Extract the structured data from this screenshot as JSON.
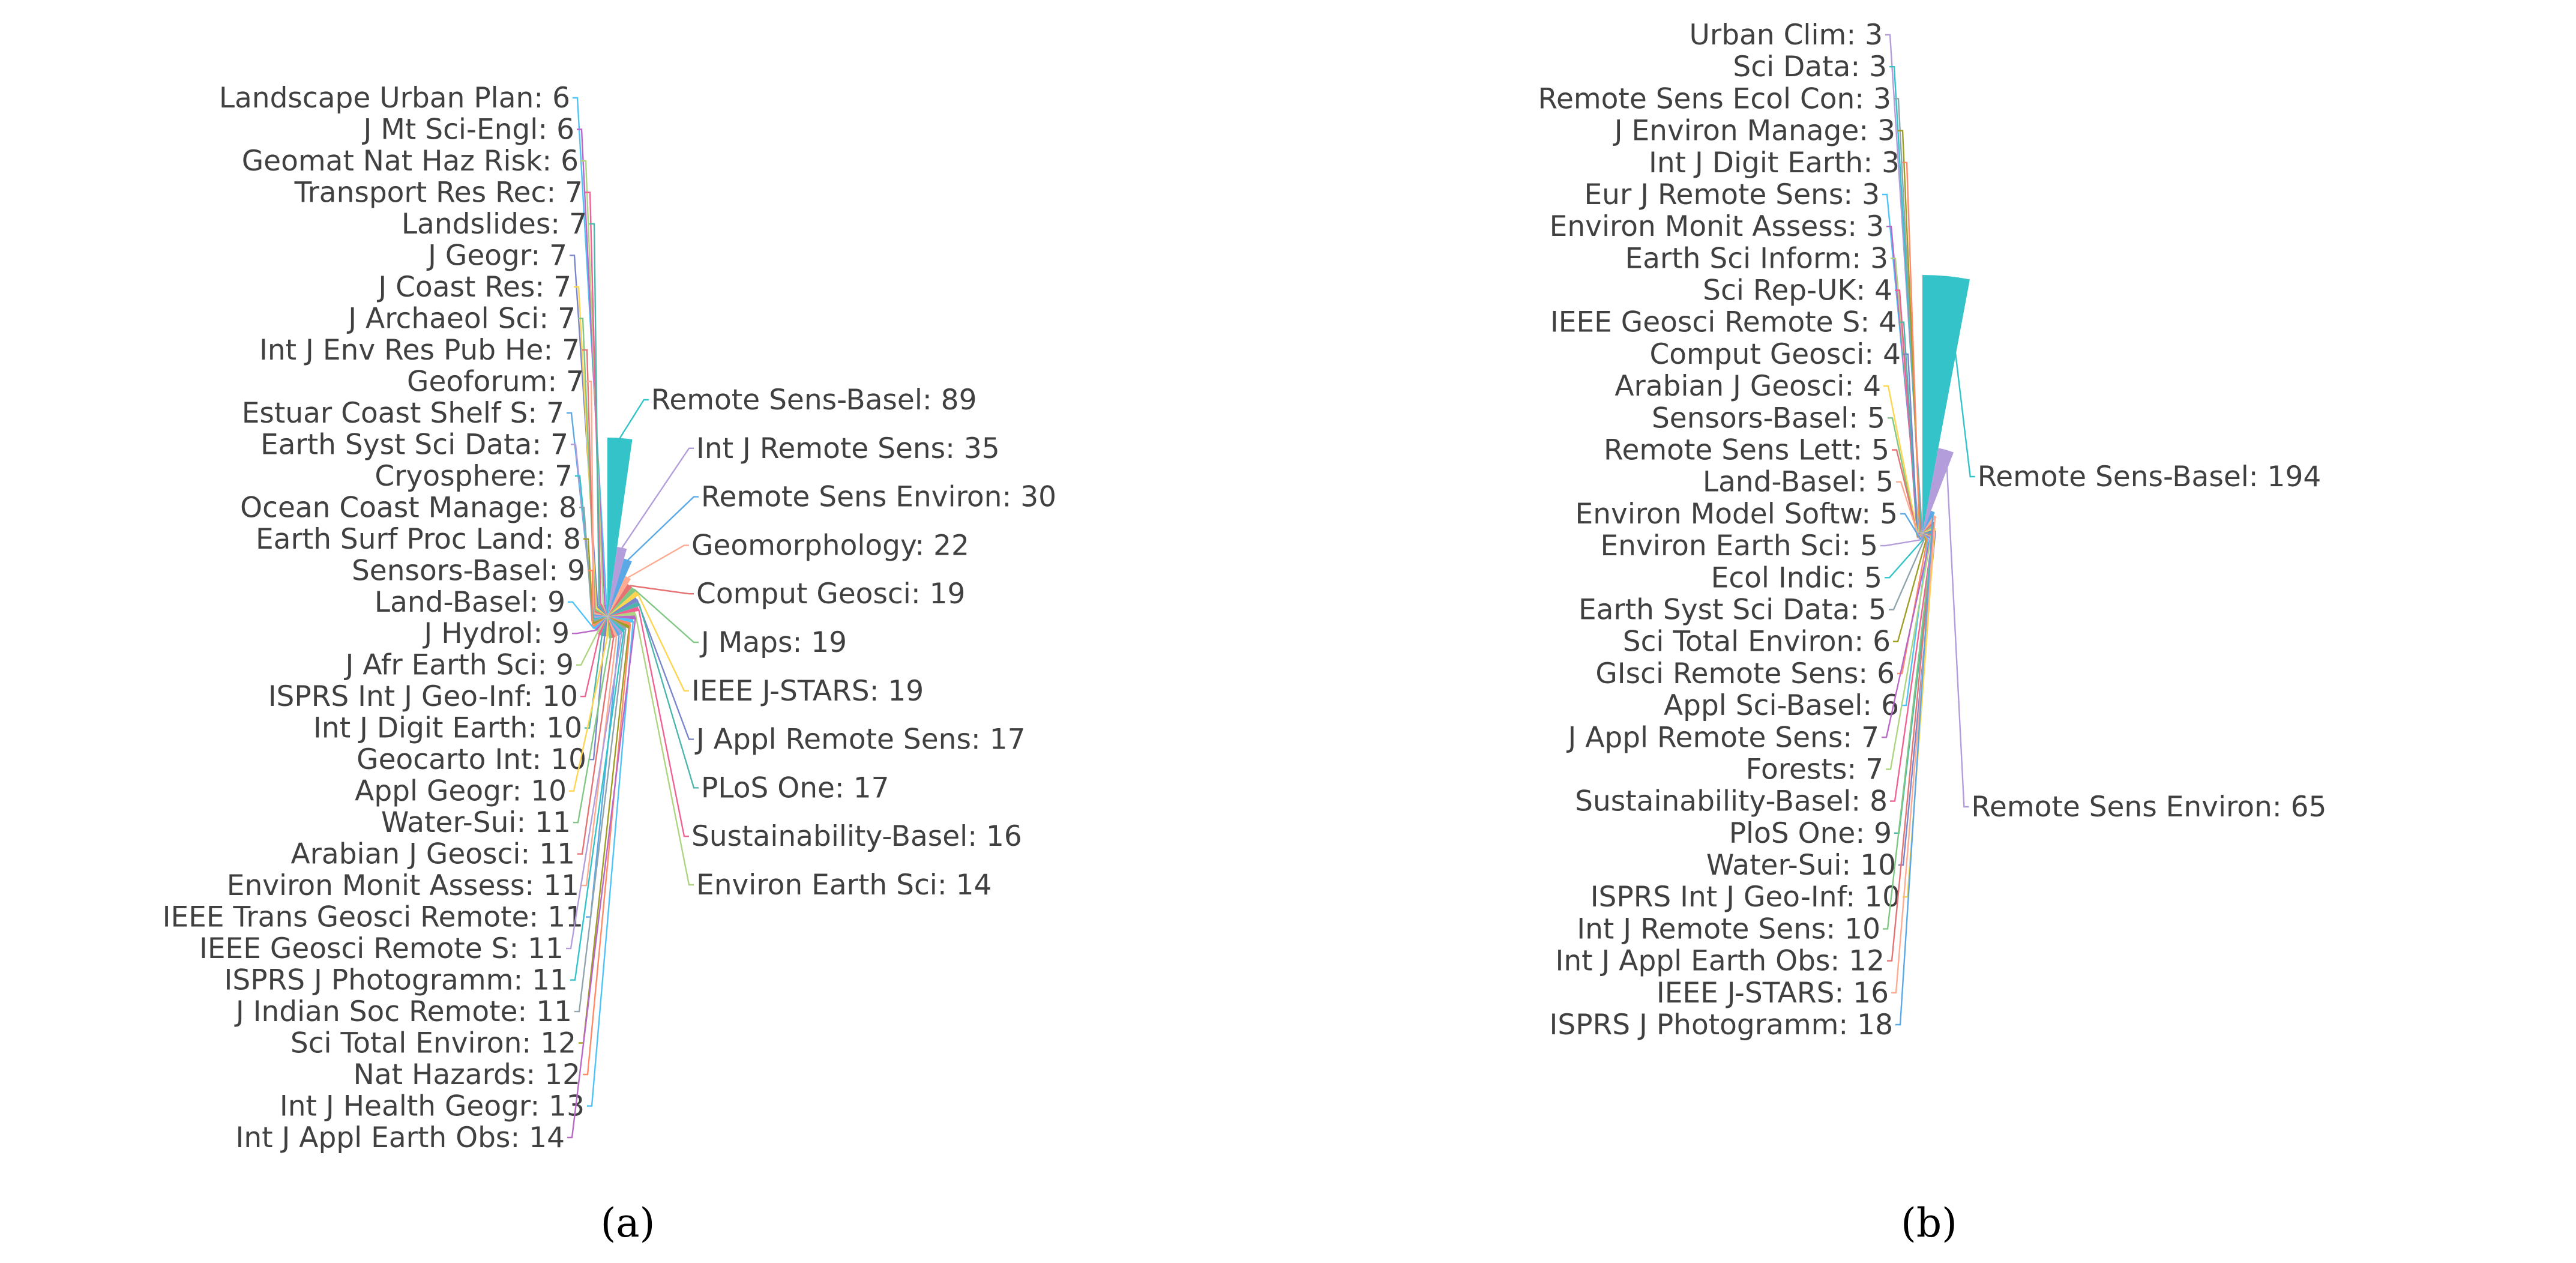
{
  "chart_data": [
    {
      "type": "pie",
      "subtype": "nightingale-rose",
      "panel": "(a)",
      "slices": [
        {
          "label": "Remote Sens-Basel",
          "value": 89
        },
        {
          "label": "Int J Remote Sens",
          "value": 35
        },
        {
          "label": "Remote Sens Environ",
          "value": 30
        },
        {
          "label": "Geomorphology",
          "value": 22
        },
        {
          "label": "Comput Geosci",
          "value": 19
        },
        {
          "label": "J Maps",
          "value": 19
        },
        {
          "label": "IEEE J-STARS",
          "value": 19
        },
        {
          "label": "J Appl Remote Sens",
          "value": 17
        },
        {
          "label": "PLoS One",
          "value": 17
        },
        {
          "label": "Sustainability-Basel",
          "value": 16
        },
        {
          "label": "Environ Earth Sci",
          "value": 14
        },
        {
          "label": "Int J Appl Earth Obs",
          "value": 14
        },
        {
          "label": "Int J Health Geogr",
          "value": 13
        },
        {
          "label": "Nat Hazards",
          "value": 12
        },
        {
          "label": "Sci Total Environ",
          "value": 12
        },
        {
          "label": "J Indian Soc Remote",
          "value": 11
        },
        {
          "label": "ISPRS J Photogramm",
          "value": 11
        },
        {
          "label": "IEEE Geosci Remote S",
          "value": 11
        },
        {
          "label": "IEEE Trans Geosci Remote",
          "value": 11
        },
        {
          "label": "Environ Monit Assess",
          "value": 11
        },
        {
          "label": "Arabian J Geosci",
          "value": 11
        },
        {
          "label": "Water-Sui",
          "value": 11
        },
        {
          "label": "Appl Geogr",
          "value": 10
        },
        {
          "label": "Geocarto Int",
          "value": 10
        },
        {
          "label": "Int J Digit Earth",
          "value": 10
        },
        {
          "label": "ISPRS Int J Geo-Inf",
          "value": 10
        },
        {
          "label": "J Afr Earth Sci",
          "value": 9
        },
        {
          "label": "J Hydrol",
          "value": 9
        },
        {
          "label": "Land-Basel",
          "value": 9
        },
        {
          "label": "Sensors-Basel",
          "value": 9
        },
        {
          "label": "Earth Surf Proc Land",
          "value": 8
        },
        {
          "label": "Ocean Coast Manage",
          "value": 8
        },
        {
          "label": "Cryosphere",
          "value": 7
        },
        {
          "label": "Earth Syst Sci Data",
          "value": 7
        },
        {
          "label": "Estuar Coast Shelf S",
          "value": 7
        },
        {
          "label": "Geoforum",
          "value": 7
        },
        {
          "label": "Int J Env Res Pub He",
          "value": 7
        },
        {
          "label": "J Archaeol Sci",
          "value": 7
        },
        {
          "label": "J Coast Res",
          "value": 7
        },
        {
          "label": "J Geogr",
          "value": 7
        },
        {
          "label": "Landslides",
          "value": 7
        },
        {
          "label": "Transport Res Rec",
          "value": 7
        },
        {
          "label": "Geomat Nat Haz Risk",
          "value": 6
        },
        {
          "label": "J Mt Sci-Engl",
          "value": 6
        },
        {
          "label": "Landscape Urban Plan",
          "value": 6
        }
      ]
    },
    {
      "type": "pie",
      "subtype": "nightingale-rose",
      "panel": "(b)",
      "slices": [
        {
          "label": "Remote Sens-Basel",
          "value": 194
        },
        {
          "label": "Remote Sens Environ",
          "value": 65
        },
        {
          "label": "ISPRS J Photogramm",
          "value": 18
        },
        {
          "label": "IEEE J-STARS",
          "value": 16
        },
        {
          "label": "Int J Appl Earth Obs",
          "value": 12
        },
        {
          "label": "Int J Remote Sens",
          "value": 10
        },
        {
          "label": "ISPRS Int J Geo-Inf",
          "value": 10
        },
        {
          "label": "Water-Sui",
          "value": 10
        },
        {
          "label": "PloS One",
          "value": 9
        },
        {
          "label": "Sustainability-Basel",
          "value": 8
        },
        {
          "label": "Forests",
          "value": 7
        },
        {
          "label": "J Appl Remote Sens",
          "value": 7
        },
        {
          "label": "Appl Sci-Basel",
          "value": 6
        },
        {
          "label": "GIsci Remote Sens",
          "value": 6
        },
        {
          "label": "Sci Total Environ",
          "value": 6
        },
        {
          "label": "Earth Syst Sci Data",
          "value": 5
        },
        {
          "label": "Ecol Indic",
          "value": 5
        },
        {
          "label": "Environ Earth Sci",
          "value": 5
        },
        {
          "label": "Environ Model Softw",
          "value": 5
        },
        {
          "label": "Land-Basel",
          "value": 5
        },
        {
          "label": "Remote Sens Lett",
          "value": 5
        },
        {
          "label": "Sensors-Basel",
          "value": 5
        },
        {
          "label": "Arabian J Geosci",
          "value": 4
        },
        {
          "label": "Comput Geosci",
          "value": 4
        },
        {
          "label": "IEEE Geosci Remote S",
          "value": 4
        },
        {
          "label": "Sci Rep-UK",
          "value": 4
        },
        {
          "label": "Earth Sci Inform",
          "value": 3
        },
        {
          "label": "Environ Monit Assess",
          "value": 3
        },
        {
          "label": "Eur J Remote Sens",
          "value": 3
        },
        {
          "label": "Int J Digit Earth",
          "value": 3
        },
        {
          "label": "J Environ Manage",
          "value": 3
        },
        {
          "label": "Remote Sens Ecol Con",
          "value": 3
        },
        {
          "label": "Sci Data",
          "value": 3
        },
        {
          "label": "Urban Clim",
          "value": 3
        }
      ]
    }
  ],
  "palette": [
    "#33c3c8",
    "#b39ddb",
    "#5aa9e6",
    "#ffab91",
    "#e57373",
    "#81c784",
    "#ffd54f",
    "#7986cb",
    "#4db6ac",
    "#f06292",
    "#aed581",
    "#ba68c8",
    "#4fc3f7",
    "#ff8a65",
    "#9e9d24",
    "#90a4ae"
  ]
}
